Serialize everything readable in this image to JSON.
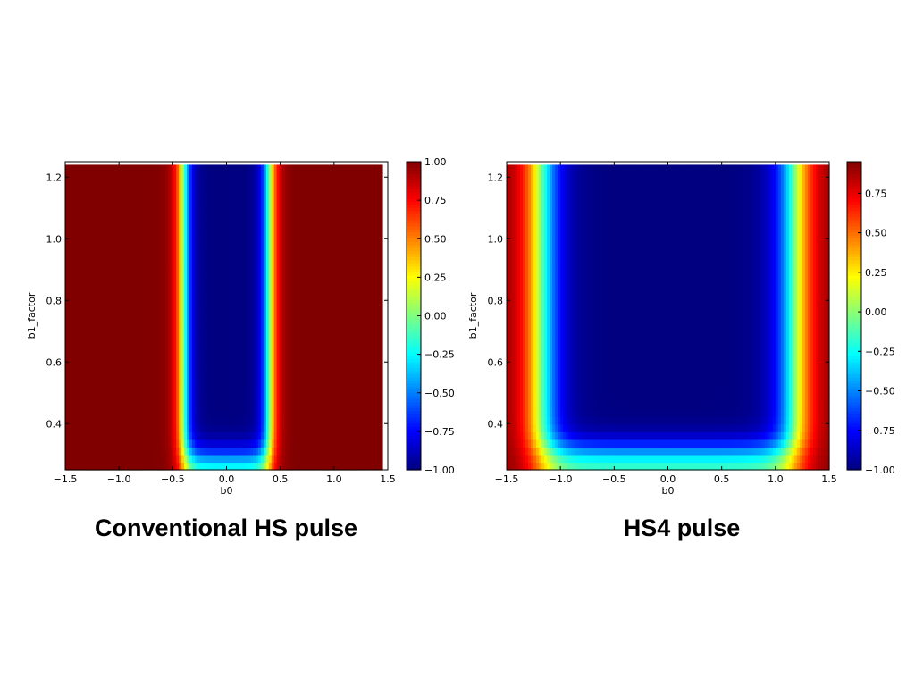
{
  "captions": [
    "Conventional HS pulse",
    "HS4 pulse"
  ],
  "chart_data": [
    {
      "type": "heatmap",
      "xlabel": "b0",
      "ylabel": "b1_factor",
      "xlim": [
        -1.5,
        1.5
      ],
      "ylim": [
        0.25,
        1.25
      ],
      "xticks": [
        -1.5,
        -1.0,
        -0.5,
        0.0,
        0.5,
        1.0,
        1.5
      ],
      "xtick_labels": [
        "−1.5",
        "−1.0",
        "−0.5",
        "0.0",
        "0.5",
        "1.0",
        "1.5"
      ],
      "yticks": [
        0.4,
        0.6,
        0.8,
        1.0,
        1.2
      ],
      "ytick_labels": [
        "0.4",
        "0.6",
        "0.8",
        "1.0",
        "1.2"
      ],
      "colormap": "jet",
      "vmin": -1.0,
      "vmax": 1.0,
      "colorbar_ticks": [
        1.0,
        0.75,
        0.5,
        0.25,
        0.0,
        -0.25,
        -0.5,
        -0.75,
        -1.0
      ],
      "colorbar_tick_labels": [
        "1.00",
        "0.75",
        "0.50",
        "0.25",
        "0.00",
        "−0.25",
        "−0.50",
        "−0.75",
        "−1.00"
      ],
      "inversion_band": {
        "b0_halfwidth": 0.4,
        "transition_width": 0.12
      },
      "b1_threshold": 0.3,
      "data_ylim_top": 1.24,
      "data_xlim": [
        -1.5,
        1.45
      ]
    },
    {
      "type": "heatmap",
      "xlabel": "b0",
      "ylabel": "b1_factor",
      "xlim": [
        -1.5,
        1.5
      ],
      "ylim": [
        0.25,
        1.25
      ],
      "xticks": [
        -1.5,
        -1.0,
        -0.5,
        0.0,
        0.5,
        1.0,
        1.5
      ],
      "xtick_labels": [
        "−1.5",
        "−1.0",
        "−0.5",
        "0.0",
        "0.5",
        "1.0",
        "1.5"
      ],
      "yticks": [
        0.4,
        0.6,
        0.8,
        1.0,
        1.2
      ],
      "ytick_labels": [
        "0.4",
        "0.6",
        "0.8",
        "1.0",
        "1.2"
      ],
      "colormap": "jet",
      "vmin": -1.0,
      "vmax": 0.95,
      "colorbar_ticks": [
        0.75,
        0.5,
        0.25,
        0.0,
        -0.25,
        -0.5,
        -0.75,
        -1.0
      ],
      "colorbar_tick_labels": [
        "0.75",
        "0.50",
        "0.25",
        "0.00",
        "−0.25",
        "−0.50",
        "−0.75",
        "−1.00"
      ],
      "inversion_band": {
        "b0_halfwidth": 1.18,
        "transition_width": 0.28
      },
      "b1_threshold": 0.32,
      "data_ylim_top": 1.24,
      "data_xlim": [
        -1.5,
        1.5
      ]
    }
  ]
}
